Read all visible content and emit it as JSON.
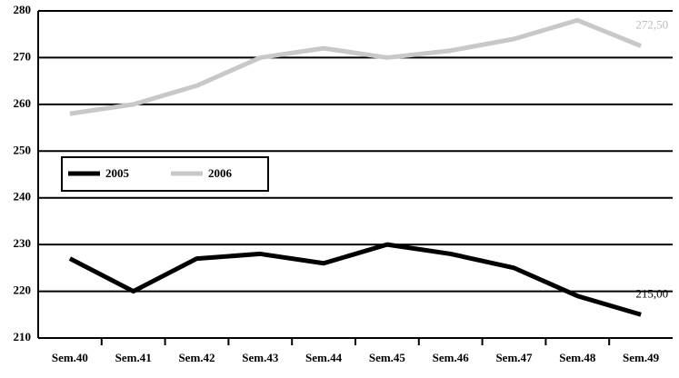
{
  "chart_data": {
    "type": "line",
    "categories": [
      "Sem.40",
      "Sem.41",
      "Sem.42",
      "Sem.43",
      "Sem.44",
      "Sem.45",
      "Sem.46",
      "Sem.47",
      "Sem.48",
      "Sem.49"
    ],
    "series": [
      {
        "name": "2005",
        "color": "#000000",
        "values": [
          227,
          220,
          227,
          228,
          226,
          230,
          228,
          225,
          219,
          215
        ],
        "value_labels": [
          null,
          null,
          null,
          null,
          null,
          null,
          null,
          null,
          null,
          "215,00"
        ]
      },
      {
        "name": "2006",
        "color": "#c8c8c8",
        "values": [
          258,
          260,
          264,
          270,
          272,
          270,
          271.5,
          274,
          278,
          272.5
        ],
        "value_labels": [
          null,
          null,
          null,
          null,
          null,
          null,
          null,
          null,
          null,
          "272,50"
        ]
      }
    ],
    "ylim": [
      210,
      280
    ],
    "yticks": [
      210,
      220,
      230,
      240,
      250,
      260,
      270,
      280
    ],
    "grid": true,
    "legend": "left"
  }
}
